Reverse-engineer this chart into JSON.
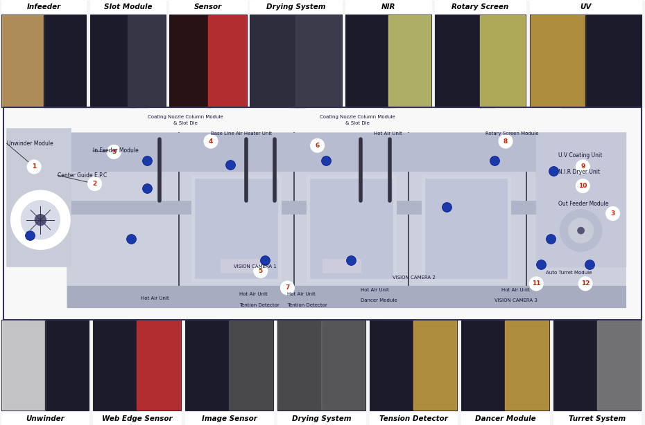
{
  "top_labels": [
    "Infeeder",
    "Slot Module",
    "Sensor",
    "Drying System",
    "NIR",
    "Rotary Screen",
    "UV"
  ],
  "bottom_labels": [
    "Unwinder",
    "Web Edge Sensor",
    "Image Sensor",
    "Drying System",
    "Tension Detector",
    "Dancer Module",
    "Turret System"
  ],
  "top_photo_colors": [
    [
      "#c8a060",
      "#1a1a2a",
      "#c8a060"
    ],
    [
      "#1a1a2a",
      "#3a3a4a",
      "#c8a060"
    ],
    [
      "#2a1010",
      "#cc3030",
      "#1a1a3a"
    ],
    [
      "#303040",
      "#404050",
      "#505060"
    ],
    [
      "#1a1a2a",
      "#c8c870",
      "#2a2a3a"
    ],
    [
      "#1a1a2a",
      "#c8c060",
      "#1a1a2a"
    ],
    [
      "#c8a040",
      "#1a1a2a",
      "#c8a040"
    ]
  ],
  "bottom_photo_colors": [
    [
      "#e0e0e0",
      "#1a1a2a",
      "#e0e0e0"
    ],
    [
      "#1a1a2a",
      "#cc3030",
      "#c8a040"
    ],
    [
      "#1a1a2a",
      "#505050",
      "#1a1a2a"
    ],
    [
      "#505050",
      "#606060",
      "#808080"
    ],
    [
      "#1a1a2a",
      "#c8a040",
      "#c8a040"
    ],
    [
      "#1a1a2a",
      "#c8a040",
      "#c8a040"
    ],
    [
      "#1a1a2a",
      "#808080",
      "#404040"
    ]
  ],
  "diagram_bg": "#f0f0f0",
  "machine_bg": "#d8dce8",
  "border_color": "#222244",
  "blue_dot_color": "#1a3aaa",
  "red_circle_color": "#cc2200",
  "annotation_color": "#111133",
  "line_color": "#1a3a8a",
  "top_strip_label_color": "#111111",
  "bot_strip_label_color": "#111111"
}
